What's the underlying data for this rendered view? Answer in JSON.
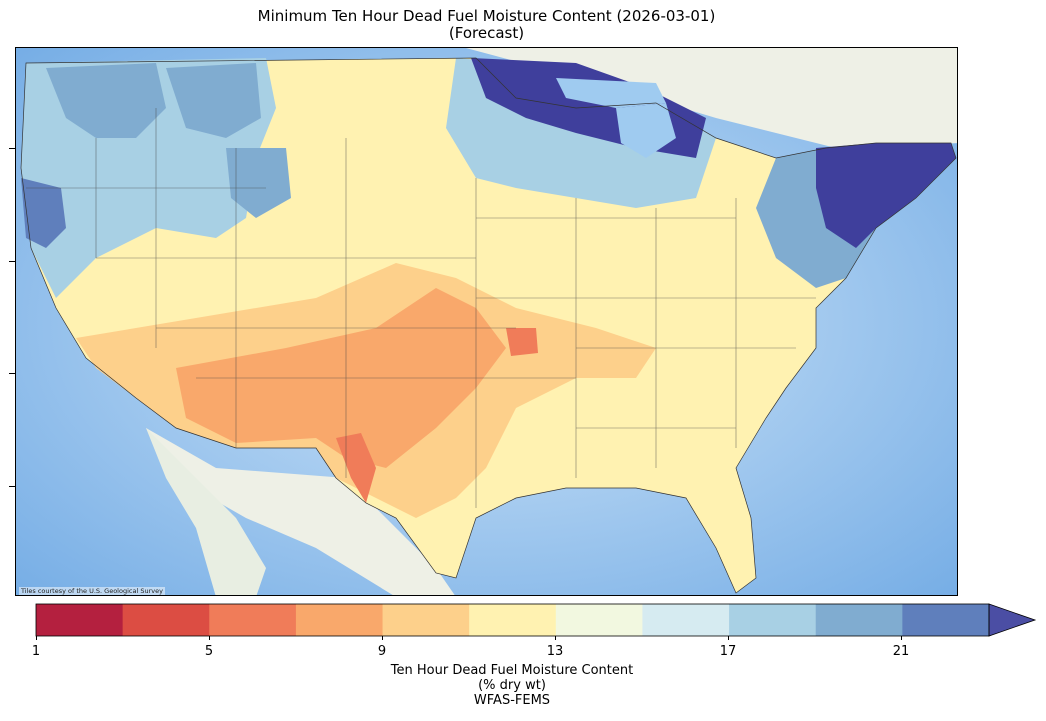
{
  "title": "Minimum Ten Hour Dead Fuel Moisture Content (2026-03-01)",
  "subtitle": "(Forecast)",
  "map": {
    "region": "Continental United States",
    "basemap_credit": "Tiles courtesy of the U.S. Geological Survey",
    "ocean_color": "#9fcbf0",
    "land_color": "#eef0e6"
  },
  "legend": {
    "title_line1": "Ten Hour Dead Fuel Moisture Content",
    "title_line2": "(% dry wt)",
    "title_line3": "WFAS-FEMS",
    "min": 1,
    "max": 23,
    "extend": "max",
    "tick_labels": [
      "1",
      "5",
      "9",
      "13",
      "17",
      "21"
    ],
    "bin_colors": [
      "#b4203f",
      "#dc4d43",
      "#f07c59",
      "#f9a86b",
      "#fdd08b",
      "#fff2b1",
      "#f2f8e0",
      "#d6ebf1",
      "#a8d0e4",
      "#80acd0",
      "#5f7fbc",
      "#4b4ea4"
    ]
  },
  "zones": [
    {
      "name": "northeast-dark",
      "value_class": ">23",
      "color": "#3f3f9c"
    },
    {
      "name": "great-lakes-dark",
      "value_class": ">23",
      "color": "#3f3f9c"
    },
    {
      "name": "northwest-blue",
      "value_class": "17-21",
      "color": "#80acd0"
    },
    {
      "name": "southwest-orange",
      "value_class": "7-9",
      "color": "#f9a86b"
    },
    {
      "name": "west-texas-red",
      "value_class": "5-7",
      "color": "#f07c59"
    },
    {
      "name": "southeast-yellow",
      "value_class": "11-13",
      "color": "#fff2b1"
    }
  ]
}
